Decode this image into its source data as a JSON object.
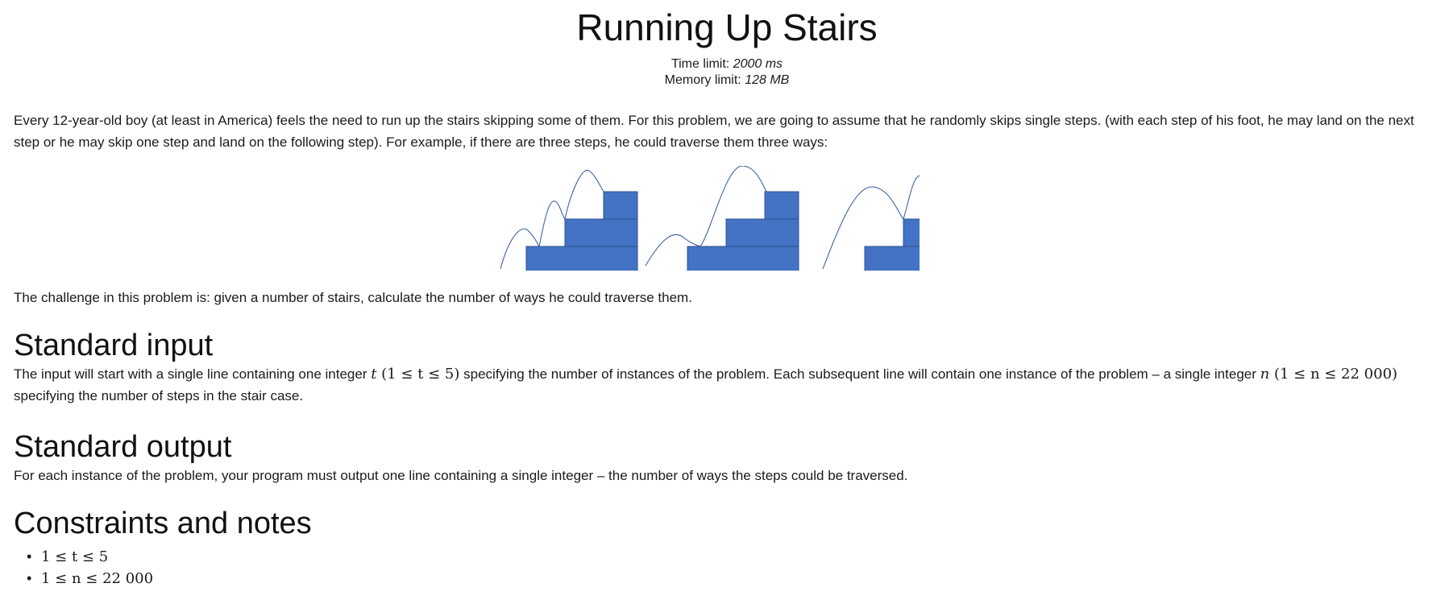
{
  "problem": {
    "title": "Running Up Stairs",
    "time_limit_label": "Time limit:",
    "time_limit_value": "2000 ms",
    "memory_limit_label": "Memory limit:",
    "memory_limit_value": "128 MB"
  },
  "statement": {
    "intro": "Every 12-year-old boy (at least in America) feels the need to run up the stairs skipping some of them. For this problem, we are going to assume that he randomly skips single steps. (with each step of his foot, he may land on the next step or he may skip one step and land on the following step). For example, if there are three steps, he could traverse them three ways:",
    "challenge": "The challenge in this problem is: given a number of stairs, calculate the number of ways he could traverse them."
  },
  "figure": {
    "stair_color": "#4472c4",
    "stair_border": "#2f528f",
    "curve_color": "#2f5597",
    "ways_shown": 3,
    "steps_per_stair": 3
  },
  "input_section": {
    "heading": "Standard input",
    "text_1": "The input will start with a single line containing one integer ",
    "var_t": "t",
    "math_t": " (1 ≤ t ≤ 5)",
    "text_2": " specifying the number of instances of the problem. Each subsequent line will contain one instance of the problem – a single integer ",
    "var_n": "n",
    "math_n": " (1 ≤ n ≤ 22 000)",
    "text_3": " specifying the number of steps in the stair case."
  },
  "output_section": {
    "heading": "Standard output",
    "text": "For each instance of the problem, your program must output one line containing a single integer – the number of ways the steps could be traversed."
  },
  "constraints_section": {
    "heading": "Constraints and notes",
    "items": [
      "1 ≤ t ≤ 5",
      "1 ≤ n ≤ 22 000"
    ]
  }
}
